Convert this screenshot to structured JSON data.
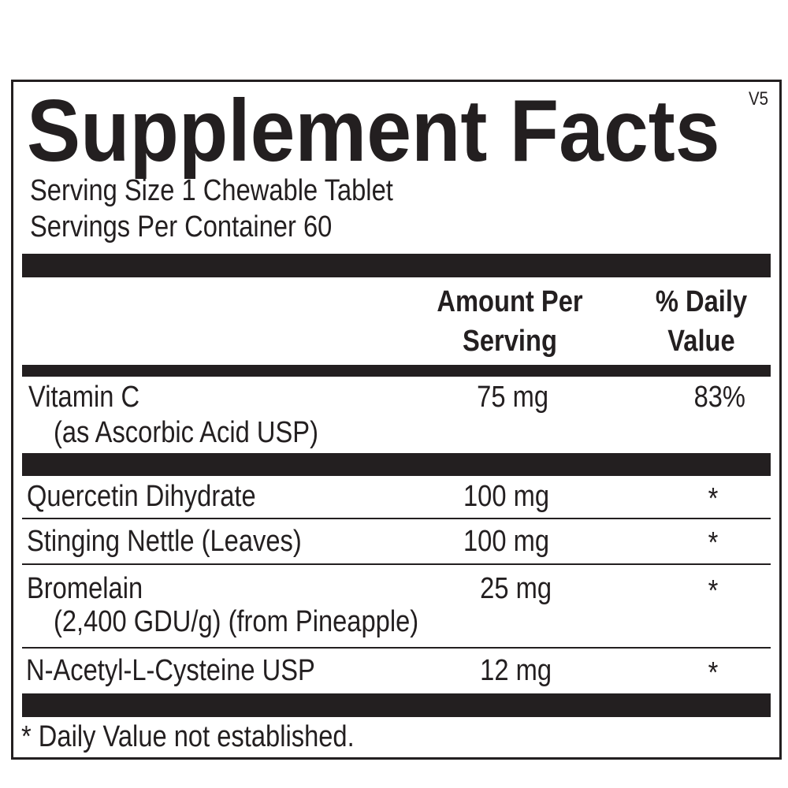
{
  "label": {
    "title": "Supplement Facts",
    "version": "V5",
    "serving_size": "Serving Size 1 Chewable Tablet",
    "servings_per_container": "Servings Per Container 60",
    "headers": {
      "amount_line1": "Amount Per",
      "amount_line2": "Serving",
      "dv_line1": "% Daily",
      "dv_line2": "Value"
    },
    "rows": [
      {
        "name": "Vitamin C",
        "sub": "(as Ascorbic Acid USP)",
        "amount": "75 mg",
        "dv": "83%"
      },
      {
        "name": "Quercetin Dihydrate",
        "amount": "100 mg",
        "dv": "*"
      },
      {
        "name": "Stinging Nettle (Leaves)",
        "amount": "100 mg",
        "dv": "*"
      },
      {
        "name": "Bromelain",
        "sub": "(2,400 GDU/g) (from Pineapple)",
        "amount": "25 mg",
        "dv": "*"
      },
      {
        "name": "N-Acetyl-L-Cysteine USP",
        "amount": "12 mg",
        "dv": "*"
      }
    ],
    "footnote": "* Daily Value not established."
  }
}
